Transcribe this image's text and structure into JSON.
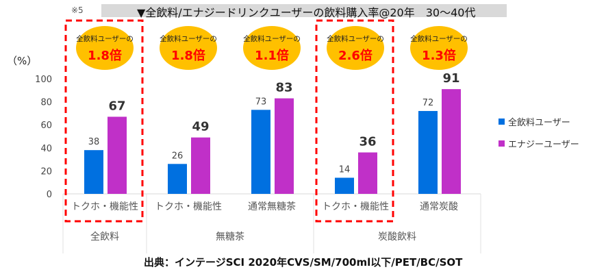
{
  "note_mark": "※5",
  "title": "▼全飲料/エナジードリンクユーザーの飲料購入率@20年　30～40代",
  "source": "出典：インテージSCI 2020年CVS/SM/700ml以下/PET/BC/SOT",
  "colors": {
    "blue": "#0070e0",
    "purple": "#c030c8",
    "badge": "#ffc000",
    "badge_text": "#ff0000",
    "highlight": "#ff0000"
  },
  "badges": [
    {
      "line1": "全飲料ユーザーの",
      "line2": "1.8倍"
    },
    {
      "line1": "全飲料ユーザーの",
      "line2": "1.8倍"
    },
    {
      "line1": "全飲料ユーザーの",
      "line2": "1.1倍"
    },
    {
      "line1": "全飲料ユーザーの",
      "line2": "2.6倍"
    },
    {
      "line1": "全飲料ユーザーの",
      "line2": "1.3倍"
    }
  ],
  "chart_data": {
    "type": "bar",
    "ylabel": "（%）",
    "ylim": [
      0,
      100
    ],
    "yticks": [
      "0",
      "20",
      "40",
      "60",
      "80",
      "100"
    ],
    "categories": [
      "トクホ・機能性",
      "トクホ・機能性",
      "通常無糖茶",
      "トクホ・機能性",
      "通常炭酸"
    ],
    "groups": [
      {
        "label": "全飲料",
        "span": 1
      },
      {
        "label": "無糖茶",
        "span": 2
      },
      {
        "label": "炭酸飲料",
        "span": 2
      }
    ],
    "series": [
      {
        "name": "全飲料ユーザー",
        "values": [
          38,
          26,
          73,
          14,
          72
        ]
      },
      {
        "name": "エナジーユーザー",
        "values": [
          67,
          49,
          83,
          36,
          91
        ]
      }
    ],
    "highlighted_categories": [
      0,
      3
    ],
    "legend": "right"
  }
}
